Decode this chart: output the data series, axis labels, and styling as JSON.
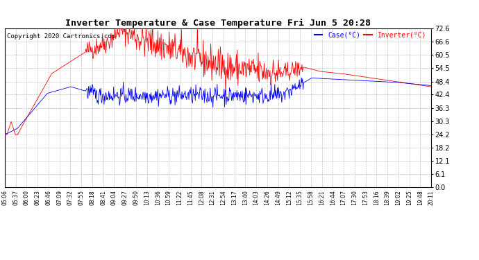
{
  "title": "Inverter Temperature & Case Temperature Fri Jun 5 20:28",
  "copyright": "Copyright 2020 Cartronics.com",
  "legend_case": "Case(°C)",
  "legend_inverter": "Inverter(°C)",
  "case_color": "blue",
  "inverter_color": "red",
  "ylim": [
    0.0,
    72.6
  ],
  "yticks": [
    0.0,
    6.1,
    12.1,
    18.2,
    24.2,
    30.3,
    36.3,
    42.4,
    48.4,
    54.5,
    60.5,
    66.6,
    72.6
  ],
  "background_color": "#ffffff",
  "grid_color": "#b0b0b0",
  "xtick_labels": [
    "05:06",
    "05:37",
    "06:00",
    "06:23",
    "06:46",
    "07:09",
    "07:32",
    "07:55",
    "08:18",
    "08:41",
    "09:04",
    "09:27",
    "09:50",
    "10:13",
    "10:36",
    "10:59",
    "11:22",
    "11:45",
    "12:08",
    "12:31",
    "12:54",
    "13:17",
    "13:40",
    "14:03",
    "14:26",
    "14:49",
    "15:12",
    "15:35",
    "15:58",
    "16:21",
    "16:44",
    "17:07",
    "17:30",
    "17:53",
    "18:16",
    "18:39",
    "19:02",
    "19:25",
    "19:48",
    "20:11"
  ],
  "n_points": 800
}
